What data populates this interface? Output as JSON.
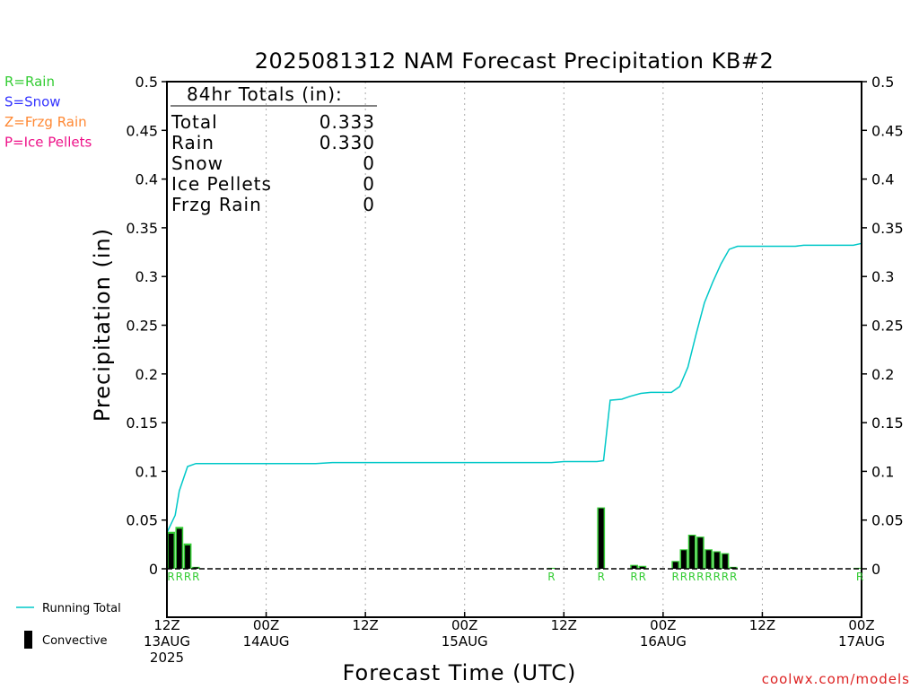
{
  "chart_data": {
    "type": "bar",
    "title": "2025081312 NAM Forecast Precipitation KB#2",
    "xlabel": "Forecast Time (UTC)",
    "ylabel": "Precipitation (in)",
    "ylim": [
      0,
      0.5
    ],
    "xlim_hours": [
      0,
      84
    ],
    "y_ticks": [
      "0",
      "0.05",
      "0.1",
      "0.15",
      "0.2",
      "0.25",
      "0.3",
      "0.35",
      "0.4",
      "0.45",
      "0.5"
    ],
    "x_ticks": [
      {
        "hour": 0,
        "line1": "12Z",
        "line2": "13AUG",
        "line3": "2025"
      },
      {
        "hour": 12,
        "line1": "00Z",
        "line2": "14AUG",
        "line3": ""
      },
      {
        "hour": 24,
        "line1": "12Z",
        "line2": "",
        "line3": ""
      },
      {
        "hour": 36,
        "line1": "00Z",
        "line2": "15AUG",
        "line3": ""
      },
      {
        "hour": 48,
        "line1": "12Z",
        "line2": "",
        "line3": ""
      },
      {
        "hour": 60,
        "line1": "00Z",
        "line2": "16AUG",
        "line3": ""
      },
      {
        "hour": 72,
        "line1": "12Z",
        "line2": "",
        "line3": ""
      },
      {
        "hour": 84,
        "line1": "00Z",
        "line2": "17AUG",
        "line3": ""
      }
    ],
    "grid": "vertical dotted",
    "legend_placement": "left",
    "totals": {
      "header": "84hr Totals (in):",
      "rows": [
        {
          "label": "Total",
          "value": "0.333"
        },
        {
          "label": "Rain",
          "value": "0.330"
        },
        {
          "label": "Snow",
          "value": "0"
        },
        {
          "label": "Ice Pellets",
          "value": "0"
        },
        {
          "label": "Frzg Rain",
          "value": "0"
        }
      ]
    },
    "precip_type_legend": [
      {
        "text": "R=Rain",
        "color": "#33cc33"
      },
      {
        "text": "S=Snow",
        "color": "#3333ff"
      },
      {
        "text": "Z=Frzg Rain",
        "color": "#ff8833"
      },
      {
        "text": "P=Ice Pellets",
        "color": "#ee1188"
      }
    ],
    "series_legend": [
      {
        "name": "Running Total",
        "kind": "line",
        "color": "#00c8c8"
      },
      {
        "name": "Convective",
        "kind": "bar",
        "color": "#000000"
      }
    ],
    "bars": [
      {
        "hour": 1,
        "total": 0.038,
        "convective": 0.036,
        "type": "R"
      },
      {
        "hour": 2,
        "total": 0.043,
        "convective": 0.041,
        "type": "R"
      },
      {
        "hour": 3,
        "total": 0.026,
        "convective": 0.024,
        "type": "R"
      },
      {
        "hour": 4,
        "total": 0.002,
        "convective": 0.0015,
        "type": "R"
      },
      {
        "hour": 47,
        "total": 0.001,
        "convective": 0.0,
        "type": "R"
      },
      {
        "hour": 53,
        "total": 0.063,
        "convective": 0.062,
        "type": "R"
      },
      {
        "hour": 57,
        "total": 0.004,
        "convective": 0.003,
        "type": "R"
      },
      {
        "hour": 58,
        "total": 0.003,
        "convective": 0.002,
        "type": "R"
      },
      {
        "hour": 62,
        "total": 0.008,
        "convective": 0.007,
        "type": "R"
      },
      {
        "hour": 63,
        "total": 0.02,
        "convective": 0.019,
        "type": "R"
      },
      {
        "hour": 64,
        "total": 0.035,
        "convective": 0.034,
        "type": "R"
      },
      {
        "hour": 65,
        "total": 0.033,
        "convective": 0.032,
        "type": "R"
      },
      {
        "hour": 66,
        "total": 0.02,
        "convective": 0.019,
        "type": "R"
      },
      {
        "hour": 67,
        "total": 0.018,
        "convective": 0.017,
        "type": "R"
      },
      {
        "hour": 68,
        "total": 0.016,
        "convective": 0.015,
        "type": "R"
      },
      {
        "hour": 69,
        "total": 0.002,
        "convective": 0.0015,
        "type": "R"
      },
      {
        "hour": 84,
        "total": 0.001,
        "convective": 0.0,
        "type": "R"
      }
    ],
    "running_total": [
      [
        0,
        0.037
      ],
      [
        1,
        0.055
      ],
      [
        1.5,
        0.08
      ],
      [
        2.5,
        0.105
      ],
      [
        3.5,
        0.108
      ],
      [
        6,
        0.108
      ],
      [
        12,
        0.108
      ],
      [
        18,
        0.108
      ],
      [
        20,
        0.109
      ],
      [
        24,
        0.109
      ],
      [
        36,
        0.109
      ],
      [
        46.5,
        0.109
      ],
      [
        48,
        0.11
      ],
      [
        52,
        0.11
      ],
      [
        52.8,
        0.111
      ],
      [
        53.6,
        0.173
      ],
      [
        55,
        0.174
      ],
      [
        56,
        0.177
      ],
      [
        57.3,
        0.18
      ],
      [
        58.5,
        0.181
      ],
      [
        61,
        0.181
      ],
      [
        62,
        0.187
      ],
      [
        63,
        0.207
      ],
      [
        64,
        0.241
      ],
      [
        65,
        0.273
      ],
      [
        66,
        0.294
      ],
      [
        67,
        0.313
      ],
      [
        68,
        0.328
      ],
      [
        69,
        0.331
      ],
      [
        72,
        0.331
      ],
      [
        76,
        0.331
      ],
      [
        77,
        0.332
      ],
      [
        80,
        0.332
      ],
      [
        83,
        0.332
      ],
      [
        84,
        0.334
      ]
    ]
  },
  "credit": "coolwx.com/models"
}
